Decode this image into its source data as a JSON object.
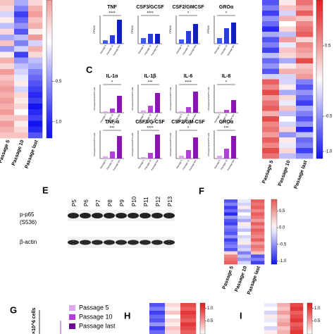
{
  "heatmaps": [
    {
      "columns": [
        "Passage 5",
        "Passage 10",
        "Passage last"
      ],
      "clim": [
        -1.2,
        0.5
      ],
      "cbar_ticks": [
        -0.5,
        {
          "value": -1.0,
          "label": "-1.0"
        }
      ],
      "values": [
        [
          0.3,
          -0.4,
          0.2
        ],
        [
          0.2,
          -0.6,
          0.4
        ],
        [
          -0.2,
          -0.9,
          0.5
        ],
        [
          0.1,
          -0.7,
          0.3
        ],
        [
          -0.3,
          -0.5,
          0.4
        ],
        [
          0.2,
          -0.8,
          0.1
        ],
        [
          -0.4,
          -0.3,
          0.5
        ],
        [
          0.3,
          -0.6,
          -0.2
        ],
        [
          -0.5,
          -0.2,
          0.4
        ],
        [
          0.1,
          -0.9,
          0.2
        ],
        [
          0.4,
          -0.5,
          -0.3
        ],
        [
          0.2,
          -0.3,
          -0.4
        ],
        [
          0.5,
          -0.2,
          -0.6
        ],
        [
          0.3,
          -0.1,
          -0.7
        ],
        [
          0.4,
          0.1,
          -0.8
        ],
        [
          0.5,
          -0.2,
          -0.9
        ],
        [
          0.4,
          0.2,
          -1.0
        ],
        [
          0.5,
          0.1,
          -0.9
        ],
        [
          0.4,
          0.2,
          -1.1
        ],
        [
          0.5,
          0.0,
          -1.0
        ],
        [
          0.3,
          0.3,
          -0.9
        ],
        [
          0.5,
          0.1,
          -1.1
        ],
        [
          0.4,
          0.2,
          -1.0
        ],
        [
          0.3,
          0.3,
          -0.8
        ]
      ]
    },
    {
      "columns": [
        "Passage 5",
        "Passage 10",
        "Passage last"
      ],
      "clim": [
        -1.1,
        1.15
      ],
      "cbar_ticks": [
        0.5,
        -0.5,
        {
          "value": -1.0,
          "label": "-1.0"
        }
      ],
      "values": [
        [
          -0.8,
          0.1,
          0.7
        ],
        [
          -0.6,
          0.3,
          0.5
        ],
        [
          -0.9,
          -0.2,
          0.8
        ],
        [
          -0.5,
          0.4,
          0.3
        ],
        [
          -0.7,
          0.0,
          0.6
        ],
        [
          -1.0,
          0.2,
          0.7
        ],
        [
          -0.4,
          -0.3,
          0.8
        ],
        [
          -0.8,
          0.5,
          0.2
        ],
        [
          -0.6,
          -0.1,
          0.6
        ],
        [
          -0.9,
          0.3,
          0.5
        ],
        [
          -0.3,
          0.2,
          0.4
        ],
        [
          -0.7,
          -0.4,
          0.9
        ],
        [
          -0.5,
          0.1,
          0.3
        ],
        [
          -0.8,
          0.4,
          0.4
        ],
        [
          -0.2,
          -0.2,
          0.5
        ],
        [
          0.8,
          -0.2,
          -0.6
        ],
        [
          0.6,
          0.1,
          -0.8
        ],
        [
          0.9,
          -0.4,
          -0.5
        ],
        [
          0.5,
          0.2,
          -0.7
        ],
        [
          0.7,
          -0.1,
          -0.9
        ],
        [
          0.8,
          0.3,
          -0.4
        ],
        [
          0.4,
          -0.3,
          -0.6
        ],
        [
          0.9,
          0.0,
          -0.8
        ],
        [
          0.6,
          -0.2,
          -0.5
        ],
        [
          0.7,
          0.2,
          -1.0
        ],
        [
          0.5,
          -0.5,
          -0.3
        ],
        [
          0.8,
          0.1,
          -0.7
        ],
        [
          0.6,
          -0.1,
          -0.6
        ],
        [
          0.9,
          0.2,
          -0.9
        ],
        [
          0.7,
          -0.3,
          -0.5
        ]
      ]
    },
    {
      "label": "F",
      "columns": [
        "Passage 5",
        "Passage 10",
        "Passage last"
      ],
      "clim": [
        -1.1,
        0.85
      ],
      "cbar_ticks": [
        0.5,
        {
          "value": 0.0,
          "label": "0.0"
        },
        -0.5,
        {
          "value": -1.0,
          "label": "-1.0"
        }
      ],
      "values": [
        [
          -0.8,
          -0.1,
          0.8
        ],
        [
          -0.6,
          -0.2,
          0.7
        ],
        [
          -0.9,
          0.1,
          0.8
        ],
        [
          -0.7,
          -0.3,
          0.6
        ],
        [
          -1.0,
          0.0,
          0.8
        ],
        [
          -0.5,
          -0.2,
          0.7
        ],
        [
          -0.8,
          -0.4,
          0.5
        ],
        [
          -0.9,
          0.1,
          0.8
        ],
        [
          -0.6,
          -0.1,
          0.6
        ],
        [
          -0.7,
          -0.3,
          0.8
        ],
        [
          -0.8,
          0.0,
          0.7
        ],
        [
          -0.5,
          -0.2,
          0.6
        ],
        [
          -0.9,
          -0.1,
          0.8
        ],
        [
          -0.7,
          0.1,
          0.5
        ],
        [
          -0.6,
          -0.3,
          0.7
        ],
        [
          -0.8,
          -0.2,
          0.6
        ],
        [
          0.2,
          -0.6,
          0.3
        ],
        [
          0.6,
          -0.3,
          -0.8
        ],
        [
          0.7,
          -0.5,
          -0.6
        ],
        [
          0.8,
          -0.2,
          -0.9
        ]
      ]
    },
    {
      "label": "H",
      "clim": [
        0.0,
        1.2
      ],
      "cbar_ticks": [
        {
          "value": 1.0,
          "label": "1.0"
        },
        0.5
      ],
      "values": [
        [
          -0.8,
          0.2,
          0.9
        ],
        [
          -0.6,
          0.1,
          0.8
        ],
        [
          -0.9,
          0.3,
          1.0
        ],
        [
          -0.7,
          0.0,
          0.9
        ],
        [
          -0.8,
          0.2,
          0.8
        ],
        [
          -0.5,
          0.1,
          1.0
        ],
        [
          -0.9,
          0.3,
          0.9
        ],
        [
          -0.7,
          0.2,
          0.8
        ]
      ]
    },
    {
      "label": "I",
      "clim": [
        0.0,
        1.2
      ],
      "cbar_ticks": [
        {
          "value": 1.0,
          "label": "1.0"
        },
        0.5
      ],
      "values": [
        [
          -0.1,
          0.4,
          0.9
        ],
        [
          0.0,
          0.3,
          1.0
        ],
        [
          -0.2,
          0.5,
          0.8
        ],
        [
          0.1,
          0.3,
          0.9
        ],
        [
          -0.1,
          0.4,
          1.0
        ],
        [
          0.0,
          0.5,
          0.8
        ],
        [
          -0.2,
          0.3,
          0.9
        ],
        [
          0.1,
          0.4,
          1.0
        ]
      ]
    }
  ],
  "bars": {
    "label": "C",
    "fpkm_ylabel": "FPKM",
    "conc_ylabel": "Pictograms/ml/10^6 cells",
    "categories": [
      "Passage 5",
      "Passage 10",
      "Passage last"
    ],
    "fpkm_colors": [
      "#3b5bf0",
      "#2a3ee0",
      "#1020c0"
    ],
    "conc_colors": [
      "#dba8ee",
      "#b23fd6",
      "#8a14b4"
    ],
    "ylim": [
      0,
      1
    ],
    "charts": [
      {
        "title": "TNF",
        "stars": "****",
        "values": [
          0.12,
          0.3,
          0.85
        ]
      },
      {
        "title": "CSF3/GCSF",
        "stars": "****",
        "values": [
          0.2,
          0.35,
          0.35
        ]
      },
      {
        "title": "CSF2/GMCSF",
        "stars": "*",
        "values": [
          0.15,
          0.45,
          0.7
        ]
      },
      {
        "title": "GROα",
        "stars": "*",
        "values": [
          0.2,
          0.55,
          0.75
        ]
      },
      {
        "title": "IL-1α",
        "stars": "*",
        "values": [
          0.05,
          0.15,
          0.6
        ]
      },
      {
        "title": "IL-1β",
        "stars": "***",
        "values": [
          0.08,
          0.25,
          0.7
        ]
      },
      {
        "title": "IL-6",
        "stars": "****",
        "values": [
          0.05,
          0.2,
          0.75
        ]
      },
      {
        "title": "IL-8",
        "stars": "*",
        "values": [
          0.03,
          0.1,
          0.45
        ]
      },
      {
        "title": "TNF-α",
        "stars": "***",
        "values": [
          0.08,
          0.25,
          0.8
        ]
      },
      {
        "title": "CSF3/G-CSF",
        "stars": "****",
        "values": [
          0.05,
          0.2,
          0.85
        ]
      },
      {
        "title": "CSF2/GM-CSF",
        "stars": "*",
        "values": [
          0.1,
          0.3,
          0.75
        ]
      },
      {
        "title": "GROα",
        "stars": "***",
        "values": [
          0.1,
          0.35,
          0.8
        ]
      }
    ]
  },
  "blot": {
    "label": "E",
    "lanes": [
      "P5",
      "P6",
      "P7",
      "P8",
      "P9",
      "P10",
      "P11",
      "P12",
      "P13"
    ],
    "target_line1": "p-p65",
    "target_line2": "(S536)",
    "control": "β-actin"
  },
  "panel_g": {
    "label": "G",
    "ylabel": "×10^6 cells",
    "legend": [
      {
        "name": "Passage 5",
        "color": "#dba8ee"
      },
      {
        "name": "Passage 10",
        "color": "#b23fd6"
      },
      {
        "name": "Passage last",
        "color": "#6a0a90"
      }
    ]
  }
}
